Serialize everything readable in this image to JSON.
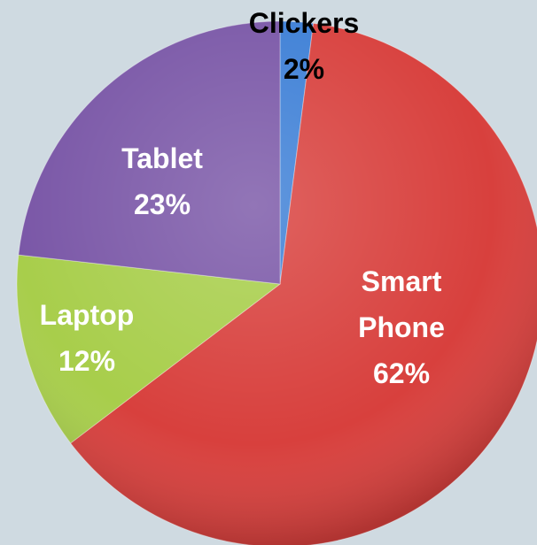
{
  "chart_data": {
    "type": "pie",
    "categories": [
      "Clickers",
      "Smart Phone",
      "Laptop",
      "Tablet"
    ],
    "values": [
      2,
      62,
      12,
      23
    ],
    "value_labels": [
      "2%",
      "62%",
      "12%",
      "23%"
    ],
    "colors": [
      "#3d7fd6",
      "#d8403d",
      "#a8ce4b",
      "#7a57a7"
    ]
  }
}
